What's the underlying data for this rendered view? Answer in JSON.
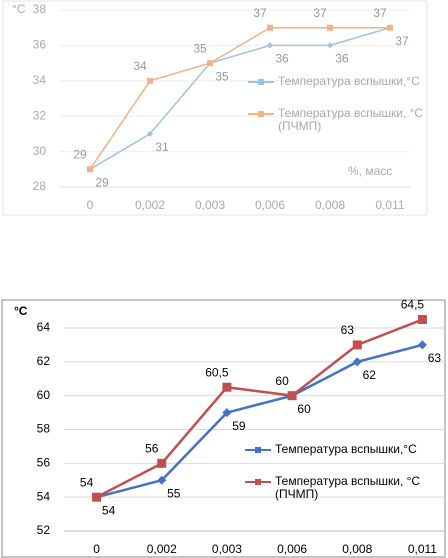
{
  "chart_data": [
    {
      "type": "line",
      "y_label": "°C",
      "x_annotation": "%, масс",
      "categories": [
        "0",
        "0,002",
        "0,003",
        "0,006",
        "0,008",
        "0,011"
      ],
      "ylim": [
        28,
        38
      ],
      "yticks": [
        28,
        30,
        32,
        34,
        36,
        38
      ],
      "grid": true,
      "legend": "right",
      "series": [
        {
          "name": "Температура вспышки,°C",
          "color": "#9dc3e6",
          "marker": "diamond",
          "values": [
            29,
            31,
            35,
            36,
            36,
            37
          ]
        },
        {
          "name": "Температура вспышки, °C (ПЧМП)",
          "color": "#f4b183",
          "marker": "square",
          "values": [
            29,
            34,
            35,
            37,
            37,
            37
          ]
        }
      ]
    },
    {
      "type": "line",
      "y_label": "°C",
      "categories": [
        "0",
        "0,002",
        "0,003",
        "0,006",
        "0,008",
        "0,011"
      ],
      "ylim": [
        52,
        64
      ],
      "yticks": [
        52,
        54,
        56,
        58,
        60,
        62,
        64
      ],
      "grid": true,
      "legend": "right",
      "series": [
        {
          "name": "Температура вспышки,°C",
          "color": "#4472c4",
          "marker": "diamond",
          "values": [
            54,
            55,
            59,
            60,
            62,
            63
          ]
        },
        {
          "name": "Температура вспышки, °C (ПЧМП)",
          "color": "#c0504d",
          "marker": "square",
          "values": [
            54,
            56,
            60.5,
            60,
            63,
            64.5
          ],
          "value_labels": [
            "54",
            "56",
            "60,5",
            "60",
            "63",
            "64,5"
          ]
        }
      ]
    }
  ]
}
